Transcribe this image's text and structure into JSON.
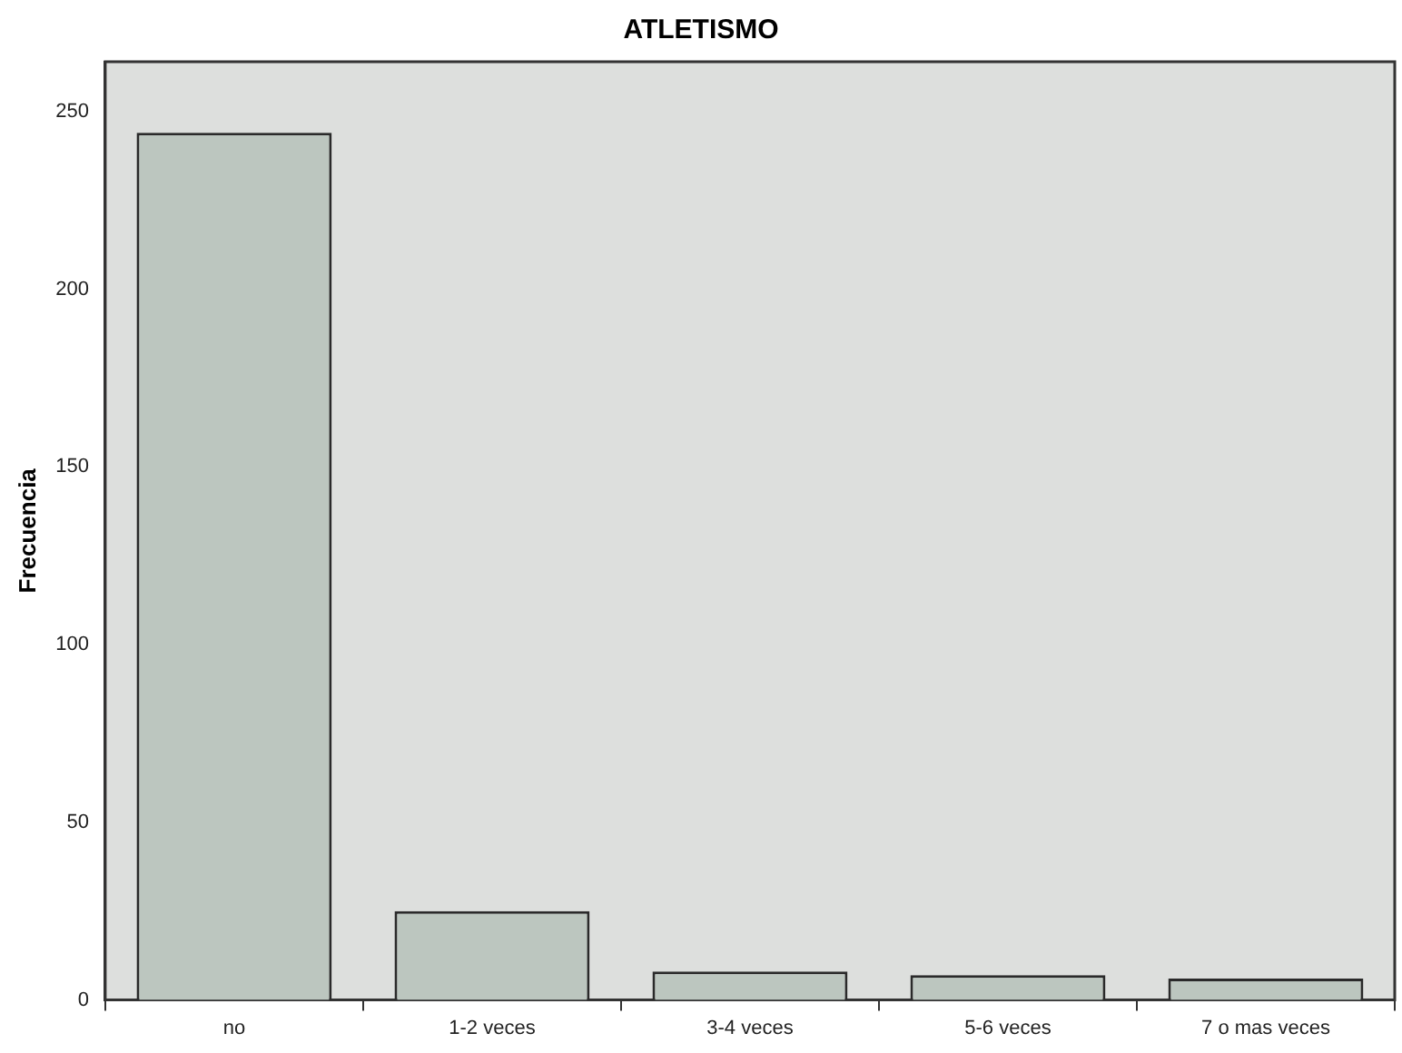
{
  "chart_data": {
    "type": "bar",
    "title": "ATLETISMO",
    "ylabel": "Frecuencia",
    "categories": [
      "no",
      "1-2 veces",
      "3-4 veces",
      "5-6 veces",
      "7 o mas veces"
    ],
    "values": [
      244,
      25,
      8,
      7,
      6
    ],
    "color": "#bcc6bf",
    "ylim": [
      0,
      264
    ],
    "yticks": [
      0,
      50,
      100,
      150,
      200,
      250
    ],
    "grid": false,
    "legend": false
  }
}
